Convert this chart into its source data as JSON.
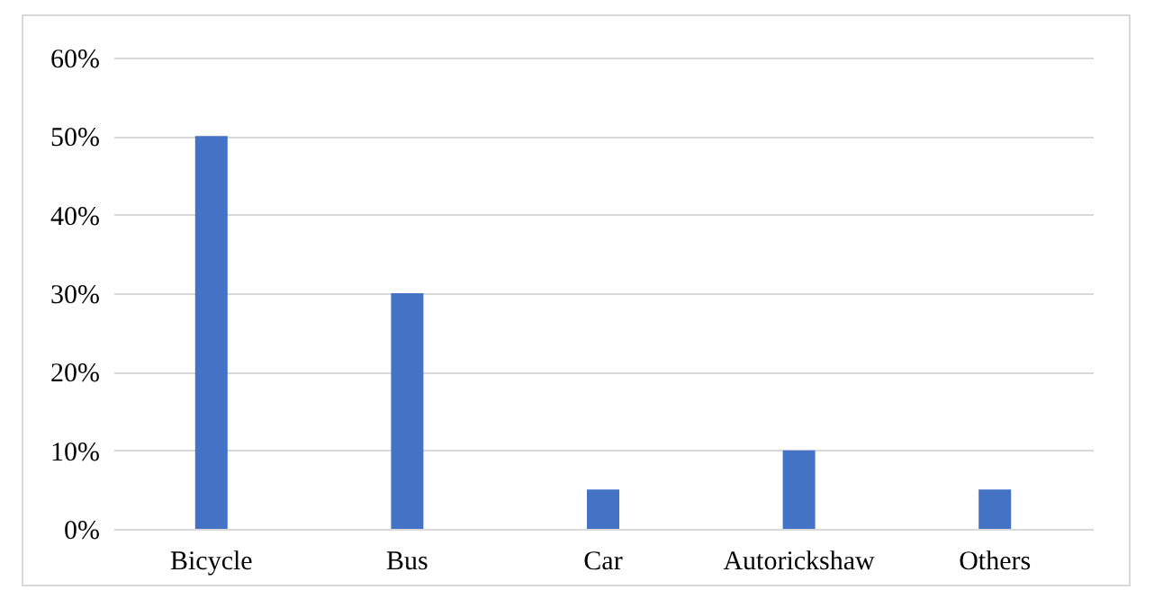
{
  "chart_data": {
    "type": "bar",
    "categories": [
      "Bicycle",
      "Bus",
      "Car",
      "Autorickshaw",
      "Others"
    ],
    "values": [
      50,
      30,
      5,
      10,
      5
    ],
    "color": "#4472c4",
    "ylim": [
      0,
      60
    ],
    "yticks": [
      {
        "value": 0,
        "label": "0%"
      },
      {
        "value": 10,
        "label": "10%"
      },
      {
        "value": 20,
        "label": "20%"
      },
      {
        "value": 30,
        "label": "30%"
      },
      {
        "value": 40,
        "label": "40%"
      },
      {
        "value": 50,
        "label": "50%"
      },
      {
        "value": 60,
        "label": "60%"
      }
    ],
    "grid": "y"
  }
}
